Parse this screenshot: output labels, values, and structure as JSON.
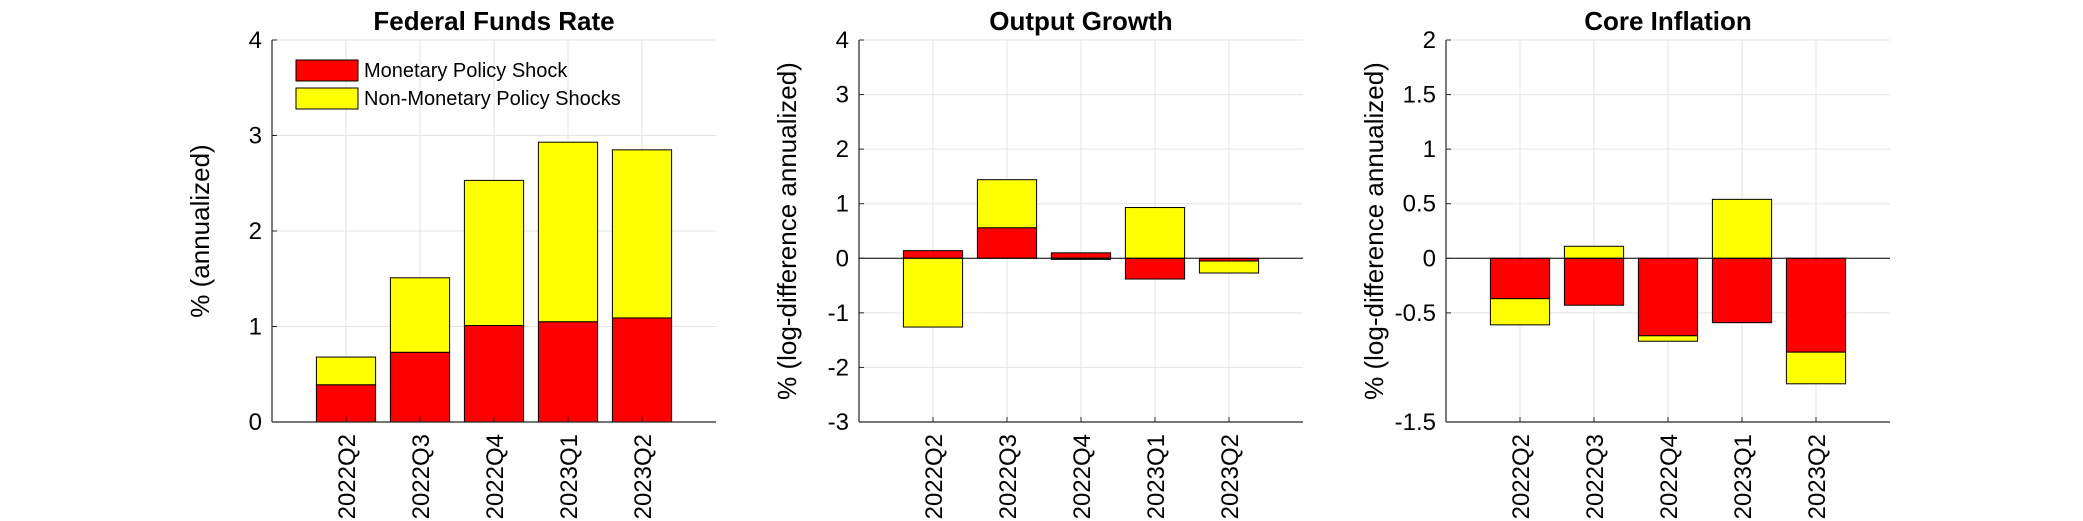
{
  "chart_data": [
    {
      "type": "bar",
      "stacked": true,
      "title": "Federal Funds Rate",
      "xlabel": "",
      "ylabel": "% (annualized)",
      "categories": [
        "2022Q2",
        "2022Q3",
        "2022Q4",
        "2023Q1",
        "2023Q2"
      ],
      "ylim": [
        0,
        4
      ],
      "yticks": [
        0,
        1,
        2,
        3,
        4
      ],
      "ytick_labels": [
        "0",
        "1",
        "2",
        "3",
        "4"
      ],
      "grid": true,
      "legend": "top-left",
      "series": [
        {
          "name": "Monetary Policy Shock",
          "color": "#ff0000",
          "values": [
            0.39,
            0.73,
            1.01,
            1.05,
            1.09
          ]
        },
        {
          "name": "Non-Monetary Policy Shocks",
          "color": "#ffff00",
          "values": [
            0.29,
            0.78,
            1.52,
            1.88,
            1.76
          ]
        }
      ]
    },
    {
      "type": "bar",
      "stacked": true,
      "title": "Output Growth",
      "xlabel": "",
      "ylabel": "% (log-difference annualized)",
      "categories": [
        "2022Q2",
        "2022Q3",
        "2022Q4",
        "2023Q1",
        "2023Q2"
      ],
      "ylim": [
        -3,
        4
      ],
      "yticks": [
        -3,
        -2,
        -1,
        0,
        1,
        2,
        3,
        4
      ],
      "ytick_labels": [
        "-3",
        "-2",
        "-1",
        "0",
        "1",
        "2",
        "3",
        "4"
      ],
      "grid": true,
      "series": [
        {
          "color": "#ff0000",
          "values": [
            0.14,
            0.56,
            0.1,
            -0.38,
            -0.05
          ]
        },
        {
          "color": "#ffff00",
          "values": [
            -1.26,
            0.88,
            -0.02,
            0.93,
            -0.22
          ]
        }
      ]
    },
    {
      "type": "bar",
      "stacked": true,
      "title": "Core Inflation",
      "xlabel": "",
      "ylabel": "% (log-difference annualized)",
      "categories": [
        "2022Q2",
        "2022Q3",
        "2022Q4",
        "2023Q1",
        "2023Q2"
      ],
      "ylim": [
        -1.5,
        2
      ],
      "yticks": [
        -1.5,
        -0.5,
        0,
        0.5,
        1,
        1.5,
        2
      ],
      "ytick_labels": [
        "-1.5",
        "-0.5",
        "0",
        "0.5",
        "1",
        "1.5",
        "2"
      ],
      "grid": true,
      "series": [
        {
          "color": "#ff0000",
          "values": [
            -0.37,
            -0.43,
            -0.71,
            -0.59,
            -0.86
          ]
        },
        {
          "color": "#ffff00",
          "values": [
            -0.24,
            0.11,
            -0.05,
            0.54,
            -0.29
          ]
        }
      ]
    }
  ]
}
